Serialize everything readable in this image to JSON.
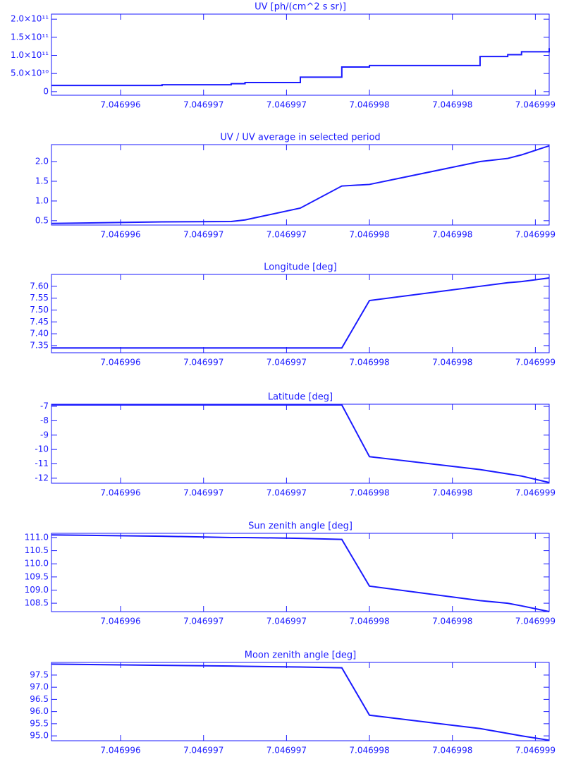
{
  "chart_data": [
    {
      "type": "line",
      "title": "UV [ph/(cm^2 s sr)]",
      "color": "#1a1aff",
      "drawstyle": "steps-post",
      "x": [
        7.0469955,
        7.0469963,
        7.0469968,
        7.0469969,
        7.0469973,
        7.0469976,
        7.0469978,
        7.0469986,
        7.0469988,
        7.0469989,
        7.0469991
      ],
      "values": [
        17000000000,
        19000000000,
        22000000000,
        25000000000,
        40000000000,
        68000000000,
        72000000000,
        97000000000,
        102000000000,
        110000000000,
        120000000000
      ],
      "xlim": [
        7.0469955,
        7.0469991
      ],
      "xticks": [
        {
          "value": 7.046996,
          "label": "7.046996"
        },
        {
          "value": 7.0469966,
          "label": "7.046997"
        },
        {
          "value": 7.0469972,
          "label": "7.046997"
        },
        {
          "value": 7.0469978,
          "label": "7.046998"
        },
        {
          "value": 7.0469984,
          "label": "7.046998"
        },
        {
          "value": 7.046999,
          "label": "7.046999"
        }
      ],
      "ylim": [
        -10000000000,
        214000000000
      ],
      "yticks": [
        0,
        {
          "value": 50000000000,
          "label": "5.0×10¹⁰"
        },
        {
          "value": 100000000000,
          "label": "1.0×10¹¹"
        },
        {
          "value": 150000000000,
          "label": "1.5×10¹¹"
        },
        {
          "value": 200000000000,
          "label": "2.0×10¹¹"
        }
      ]
    },
    {
      "type": "line",
      "title": "UV / UV average in selected period",
      "color": "#1a1aff",
      "drawstyle": "linear",
      "x": [
        7.0469955,
        7.0469963,
        7.0469968,
        7.0469969,
        7.0469973,
        7.0469976,
        7.0469978,
        7.0469986,
        7.0469988,
        7.0469989,
        7.0469991
      ],
      "values": [
        0.43,
        0.47,
        0.48,
        0.52,
        0.82,
        1.38,
        1.42,
        2.0,
        2.08,
        2.17,
        2.4
      ],
      "xlim": [
        7.0469955,
        7.0469991
      ],
      "xticks": [
        {
          "value": 7.046996,
          "label": "7.046996"
        },
        {
          "value": 7.0469966,
          "label": "7.046997"
        },
        {
          "value": 7.0469972,
          "label": "7.046997"
        },
        {
          "value": 7.0469978,
          "label": "7.046998"
        },
        {
          "value": 7.0469984,
          "label": "7.046998"
        },
        {
          "value": 7.046999,
          "label": "7.046999"
        }
      ],
      "ylim": [
        0.39,
        2.43
      ],
      "yticks": [
        0.5,
        {
          "value": 1,
          "label": "1.0"
        },
        1.5,
        {
          "value": 2,
          "label": "2.0"
        }
      ]
    },
    {
      "type": "line",
      "title": "Longitude [deg]",
      "color": "#1a1aff",
      "drawstyle": "linear",
      "x": [
        7.0469955,
        7.0469963,
        7.0469968,
        7.0469969,
        7.0469973,
        7.0469976,
        7.0469978,
        7.0469986,
        7.0469988,
        7.0469989,
        7.0469991
      ],
      "values": [
        7.34,
        7.34,
        7.34,
        7.34,
        7.34,
        7.34,
        7.54,
        7.6,
        7.615,
        7.62,
        7.635
      ],
      "xlim": [
        7.0469955,
        7.0469991
      ],
      "xticks": [
        {
          "value": 7.046996,
          "label": "7.046996"
        },
        {
          "value": 7.0469966,
          "label": "7.046997"
        },
        {
          "value": 7.0469972,
          "label": "7.046997"
        },
        {
          "value": 7.0469978,
          "label": "7.046998"
        },
        {
          "value": 7.0469984,
          "label": "7.046998"
        },
        {
          "value": 7.046999,
          "label": "7.046999"
        }
      ],
      "ylim": [
        7.32,
        7.65
      ],
      "yticks": [
        7.35,
        {
          "value": 7.4,
          "label": "7.40"
        },
        7.45,
        {
          "value": 7.5,
          "label": "7.50"
        },
        7.55,
        {
          "value": 7.6,
          "label": "7.60"
        }
      ]
    },
    {
      "type": "line",
      "title": "Latitude [deg]",
      "color": "#1a1aff",
      "drawstyle": "linear",
      "x": [
        7.0469955,
        7.0469963,
        7.0469968,
        7.0469969,
        7.0469973,
        7.0469976,
        7.0469978,
        7.0469986,
        7.0469988,
        7.0469989,
        7.0469991
      ],
      "values": [
        -6.9,
        -6.9,
        -6.9,
        -6.9,
        -6.9,
        -6.9,
        -10.5,
        -11.4,
        -11.7,
        -11.85,
        -12.3
      ],
      "xlim": [
        7.0469955,
        7.0469991
      ],
      "xticks": [
        {
          "value": 7.046996,
          "label": "7.046996"
        },
        {
          "value": 7.0469966,
          "label": "7.046997"
        },
        {
          "value": 7.0469972,
          "label": "7.046997"
        },
        {
          "value": 7.0469978,
          "label": "7.046998"
        },
        {
          "value": 7.0469984,
          "label": "7.046998"
        },
        {
          "value": 7.046999,
          "label": "7.046999"
        }
      ],
      "ylim": [
        -12.35,
        -6.85
      ],
      "yticks": [
        -12,
        -11,
        -10,
        -9,
        -8,
        -7
      ]
    },
    {
      "type": "line",
      "title": "Sun zenith angle [deg]",
      "color": "#1a1aff",
      "drawstyle": "linear",
      "x": [
        7.0469955,
        7.0469963,
        7.0469968,
        7.0469969,
        7.0469973,
        7.0469976,
        7.0469978,
        7.0469986,
        7.0469988,
        7.0469989,
        7.0469991
      ],
      "values": [
        111.1,
        111.05,
        111.0,
        111.0,
        110.97,
        110.93,
        109.15,
        108.6,
        108.5,
        108.4,
        108.18
      ],
      "xlim": [
        7.0469955,
        7.0469991
      ],
      "xticks": [
        {
          "value": 7.046996,
          "label": "7.046996"
        },
        {
          "value": 7.0469966,
          "label": "7.046997"
        },
        {
          "value": 7.0469972,
          "label": "7.046997"
        },
        {
          "value": 7.0469978,
          "label": "7.046998"
        },
        {
          "value": 7.0469984,
          "label": "7.046998"
        },
        {
          "value": 7.046999,
          "label": "7.046999"
        }
      ],
      "ylim": [
        108.18,
        111.16
      ],
      "yticks": [
        108.5,
        {
          "value": 109,
          "label": "109.0"
        },
        109.5,
        {
          "value": 110,
          "label": "110.0"
        },
        110.5,
        {
          "value": 111,
          "label": "111.0"
        }
      ]
    },
    {
      "type": "line",
      "title": "Moon zenith angle [deg]",
      "color": "#1a1aff",
      "drawstyle": "linear",
      "x": [
        7.0469955,
        7.0469963,
        7.0469968,
        7.0469969,
        7.0469973,
        7.0469976,
        7.0469978,
        7.0469986,
        7.0469988,
        7.0469989,
        7.0469991
      ],
      "values": [
        97.95,
        97.9,
        97.87,
        97.86,
        97.83,
        97.8,
        95.85,
        95.3,
        95.1,
        95.0,
        94.82
      ],
      "xlim": [
        7.0469955,
        7.0469991
      ],
      "xticks": [
        {
          "value": 7.046996,
          "label": "7.046996"
        },
        {
          "value": 7.0469966,
          "label": "7.046997"
        },
        {
          "value": 7.0469972,
          "label": "7.046997"
        },
        {
          "value": 7.0469978,
          "label": "7.046998"
        },
        {
          "value": 7.0469984,
          "label": "7.046998"
        },
        {
          "value": 7.046999,
          "label": "7.046999"
        }
      ],
      "ylim": [
        94.8,
        98.02
      ],
      "yticks": [
        {
          "value": 95,
          "label": "95.0"
        },
        95.5,
        {
          "value": 96,
          "label": "96.0"
        },
        96.5,
        {
          "value": 97,
          "label": "97.0"
        },
        97.5
      ]
    }
  ]
}
